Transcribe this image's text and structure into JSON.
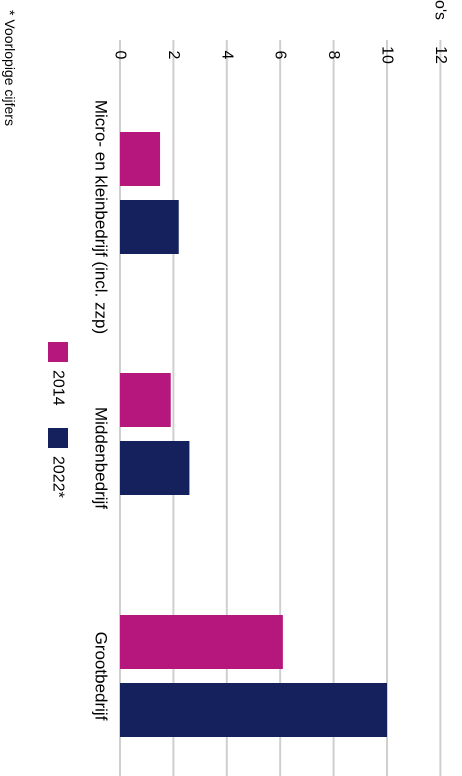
{
  "chart_data": {
    "type": "bar",
    "orientation": "horizontal",
    "rotated": "90deg clockwise",
    "unit_label": "Miljarden euro's",
    "footnote": "* Voorlopige cijfers",
    "categories": [
      "Micro- en kleinbedrijf (incl. zzp)",
      "Middenbedrijf",
      "Grootbedrijf"
    ],
    "series": [
      {
        "name": "2014",
        "color": "#b5177c",
        "values": [
          1.5,
          1.9,
          6.1
        ]
      },
      {
        "name": "2022*",
        "color": "#14215c",
        "values": [
          2.2,
          2.6,
          10.0
        ]
      }
    ],
    "xlim": [
      0,
      12
    ],
    "ticks": [
      0,
      2,
      4,
      6,
      8,
      10,
      12
    ],
    "grid": true,
    "legend_position": "center"
  }
}
